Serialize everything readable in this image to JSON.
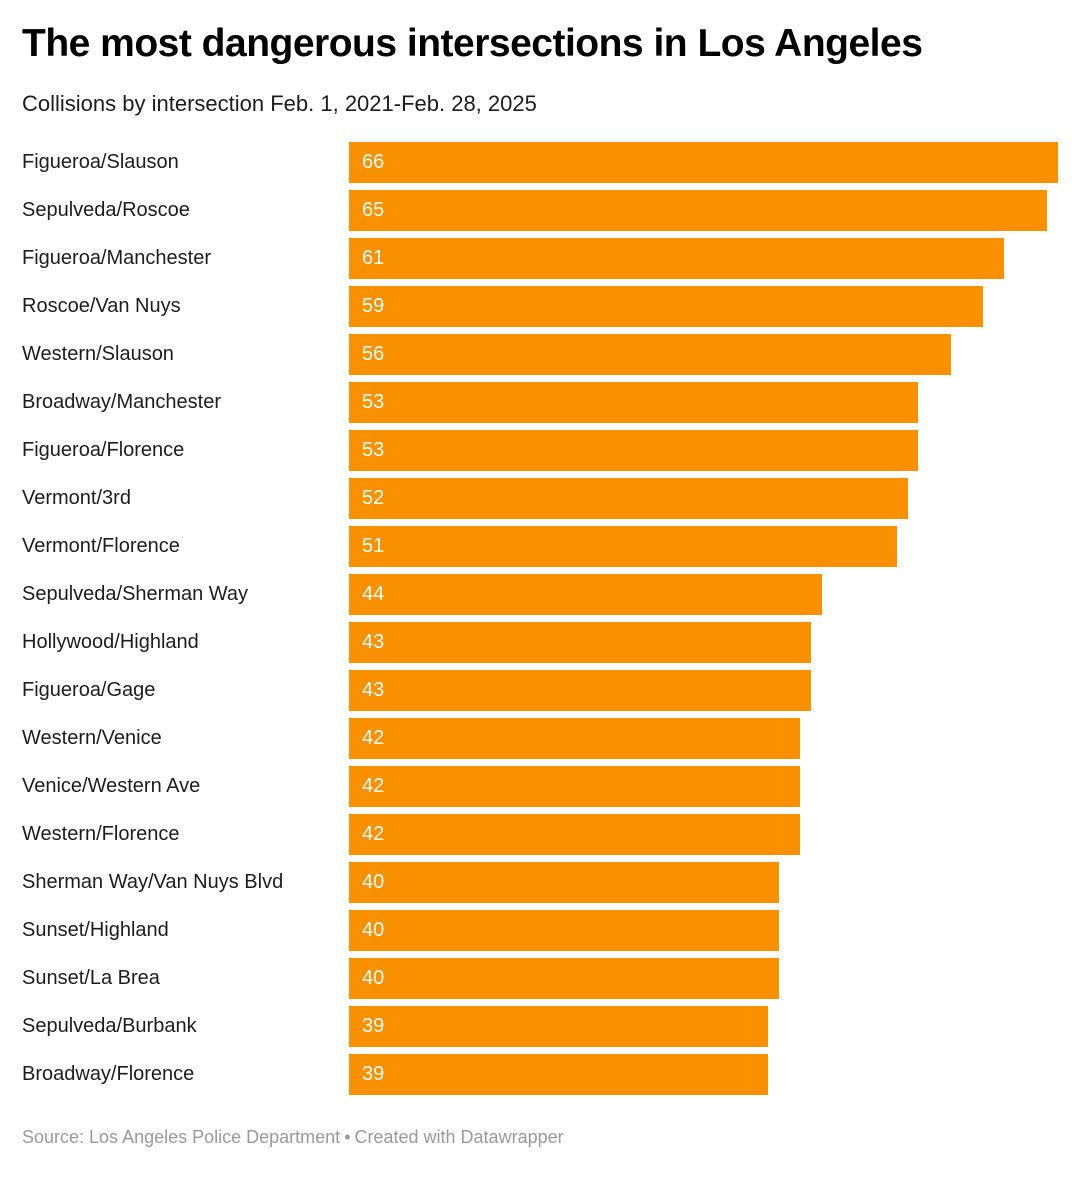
{
  "chart_data": {
    "type": "bar",
    "orientation": "horizontal",
    "title": "The most dangerous intersections in Los Angeles",
    "subtitle": "Collisions by intersection Feb. 1, 2021-Feb. 28, 2025",
    "categories": [
      "Figueroa/Slauson",
      "Sepulveda/Roscoe",
      "Figueroa/Manchester",
      "Roscoe/Van Nuys",
      "Western/Slauson",
      "Broadway/Manchester",
      "Figueroa/Florence",
      "Vermont/3rd",
      "Vermont/Florence",
      "Sepulveda/Sherman Way",
      "Hollywood/Highland",
      "Figueroa/Gage",
      "Western/Venice",
      "Venice/Western Ave",
      "Western/Florence",
      "Sherman Way/Van Nuys Blvd",
      "Sunset/Highland",
      "Sunset/La Brea",
      "Sepulveda/Burbank",
      "Broadway/Florence"
    ],
    "values": [
      66,
      65,
      61,
      59,
      56,
      53,
      53,
      52,
      51,
      44,
      43,
      43,
      42,
      42,
      42,
      40,
      40,
      40,
      39,
      39
    ],
    "xlabel": "",
    "ylabel": "",
    "xlim": [
      0,
      66
    ],
    "grid": false,
    "legend": false,
    "bar_color": "#F89000",
    "value_label_color": "#ffffff",
    "value_label_position": "inside-left"
  },
  "footer": {
    "source": "Source: Los Angeles Police Department",
    "separator": "•",
    "attribution": "Created with Datawrapper"
  }
}
